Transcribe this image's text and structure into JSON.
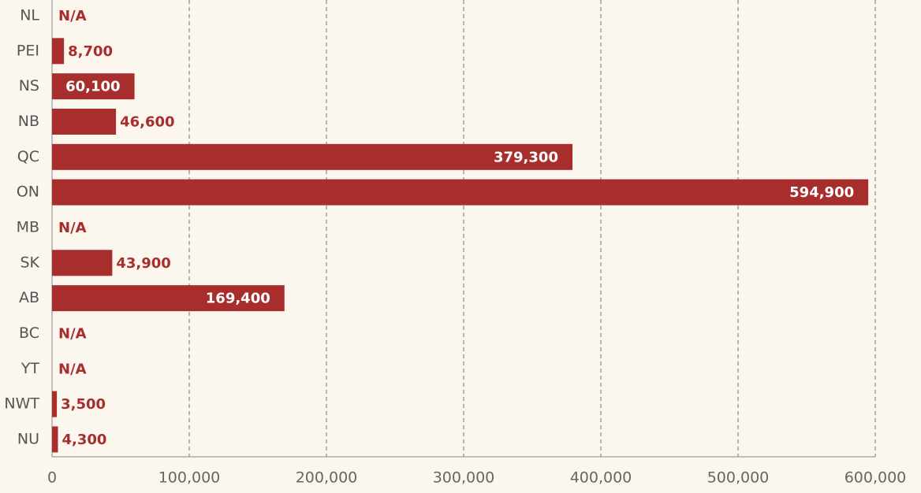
{
  "chart_data": {
    "type": "bar",
    "orientation": "horizontal",
    "categories": [
      "NL",
      "PEI",
      "NS",
      "NB",
      "QC",
      "ON",
      "MB",
      "SK",
      "AB",
      "BC",
      "YT",
      "NWT",
      "NU"
    ],
    "values": [
      null,
      8700,
      60100,
      46600,
      379300,
      594900,
      null,
      43900,
      169400,
      null,
      null,
      3500,
      4300
    ],
    "value_labels": [
      "N/A",
      "8,700",
      "60,100",
      "46,600",
      "379,300",
      "594,900",
      "N/A",
      "43,900",
      "169,400",
      "N/A",
      "N/A",
      "3,500",
      "4,300"
    ],
    "color": "#a82e2e",
    "xlim": [
      0,
      600000
    ],
    "xticks": [
      0,
      {
        "value": 100000,
        "label": "100,000"
      },
      {
        "value": 200000,
        "label": "200,000"
      },
      {
        "value": 300000,
        "label": "300,000"
      },
      {
        "value": 400000,
        "label": "400,000"
      },
      {
        "value": 500000,
        "label": "500,000"
      },
      {
        "value": 600000,
        "label": "600,000"
      }
    ],
    "grid": true
  }
}
